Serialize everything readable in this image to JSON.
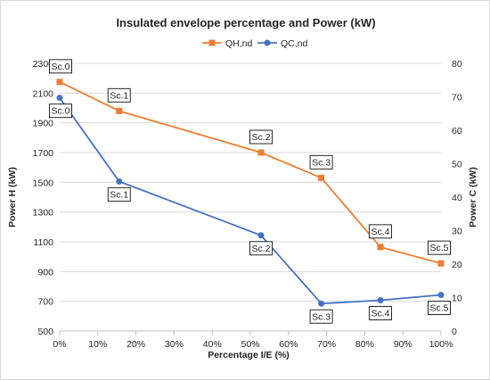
{
  "chart_data": {
    "type": "line",
    "title": "Insulated envelope percentage and Power (kW)",
    "xlabel": "Percentage I/E (%)",
    "ylabel_left": "Power H (kW)",
    "ylabel_right": "Power C (kW)",
    "xlim": [
      0,
      100
    ],
    "ylim_left": [
      500,
      2300
    ],
    "ylim_right": [
      0,
      80
    ],
    "x_ticks": [
      "0%",
      "10%",
      "20%",
      "30%",
      "40%",
      "50%",
      "60%",
      "70%",
      "80%",
      "90%",
      "100%"
    ],
    "y_left_ticks": [
      "500",
      "700",
      "900",
      "1100",
      "1300",
      "1500",
      "1700",
      "1900",
      "2100",
      "2300"
    ],
    "y_right_ticks": [
      "0",
      "10",
      "20",
      "30",
      "40",
      "50",
      "60",
      "70",
      "80"
    ],
    "legend_position": "top",
    "grid": "horizontal",
    "series": [
      {
        "name": "QH,nd",
        "axis": "left",
        "color": "#ed7d31",
        "marker": "square",
        "x": [
          0,
          15.6,
          52.8,
          68.6,
          84.1,
          100
        ],
        "y": [
          2175,
          1980,
          1700,
          1530,
          1065,
          955
        ],
        "labels": [
          "Sc.0",
          "Sc.1",
          "Sc.2",
          "Sc.3",
          "Sc.4",
          "Sc.5"
        ]
      },
      {
        "name": "QC,nd",
        "axis": "right",
        "color": "#4472c4",
        "marker": "circle",
        "x": [
          0,
          15.6,
          52.8,
          68.6,
          84.1,
          100
        ],
        "y": [
          69.7,
          44.7,
          28.6,
          8.2,
          9.2,
          10.8
        ],
        "labels": [
          "Sc.0",
          "Sc.1",
          "Sc.2",
          "Sc.3",
          "Sc.4",
          "Sc.5"
        ]
      }
    ]
  }
}
